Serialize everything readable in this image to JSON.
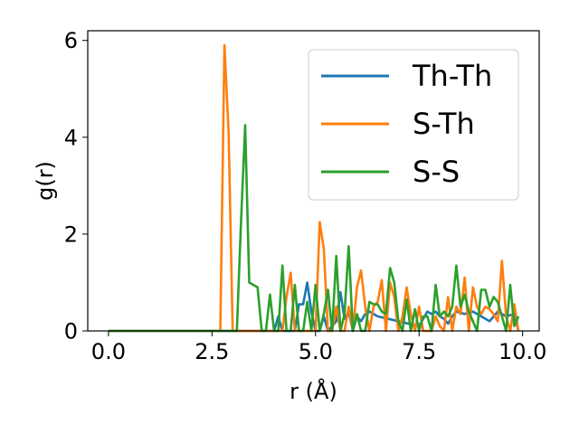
{
  "chart_data": {
    "type": "line",
    "xlabel": "r (Å)",
    "ylabel": "g(r)",
    "xlim": [
      -0.5,
      10.4
    ],
    "ylim": [
      0,
      6.2
    ],
    "xticks": [
      0.0,
      2.5,
      5.0,
      7.5,
      10.0
    ],
    "xtick_labels": [
      "0.0",
      "2.5",
      "5.0",
      "7.5",
      "10.0"
    ],
    "yticks": [
      0,
      2,
      4,
      6
    ],
    "ytick_labels": [
      "0",
      "2",
      "4",
      "6"
    ],
    "grid": false,
    "legend_position": "top-right",
    "series": [
      {
        "name": "Th-Th",
        "color": "#1f77b4",
        "x": [
          0.0,
          2.5,
          4.0,
          4.1,
          4.2,
          4.3,
          4.4,
          4.5,
          4.6,
          4.7,
          4.8,
          4.9,
          5.0,
          5.1,
          5.2,
          5.3,
          5.5,
          5.6,
          5.7,
          5.8,
          5.9,
          6.0,
          6.1,
          6.2,
          6.3,
          6.5,
          7.0,
          7.5,
          7.7,
          7.8,
          7.9,
          8.0,
          8.1,
          8.2,
          8.3,
          8.4,
          8.6,
          8.8,
          9.0,
          9.2,
          9.4,
          9.6,
          9.8,
          9.9
        ],
        "values": [
          0,
          0,
          0,
          0.3,
          0,
          0,
          0,
          0,
          0.55,
          0.55,
          1.0,
          0.4,
          0,
          0,
          0.3,
          0,
          0.2,
          0.8,
          0.25,
          0.4,
          0,
          0.3,
          0.2,
          0.35,
          0.4,
          0.3,
          0.2,
          0.1,
          0.4,
          0.35,
          0.4,
          0.3,
          0.25,
          0.15,
          0.3,
          0.4,
          0.35,
          0.4,
          0.3,
          0.2,
          0.4,
          0.3,
          0.35,
          0
        ]
      },
      {
        "name": "S-Th",
        "color": "#ff7f0e",
        "x": [
          0.0,
          2.7,
          2.8,
          2.9,
          3.0,
          3.1,
          3.2,
          3.3,
          3.4,
          3.5,
          3.6,
          3.7,
          3.8,
          3.9,
          4.0,
          4.1,
          4.2,
          4.3,
          4.4,
          4.5,
          4.6,
          4.7,
          4.8,
          4.9,
          5.0,
          5.1,
          5.2,
          5.3,
          5.4,
          5.5,
          5.6,
          5.7,
          5.8,
          5.9,
          6.0,
          6.1,
          6.2,
          6.3,
          6.4,
          6.5,
          6.6,
          6.7,
          6.8,
          6.9,
          7.0,
          7.1,
          7.2,
          7.3,
          7.4,
          7.5,
          7.6,
          7.7,
          7.8,
          7.9,
          8.0,
          8.1,
          8.2,
          8.3,
          8.4,
          8.5,
          8.6,
          8.7,
          8.8,
          8.9,
          9.0,
          9.1,
          9.2,
          9.3,
          9.4,
          9.5,
          9.6,
          9.7,
          9.8,
          9.9
        ],
        "values": [
          0,
          0,
          5.9,
          4.1,
          0,
          0,
          0,
          0,
          0,
          0,
          0,
          0,
          0,
          0,
          0,
          0,
          0,
          0.7,
          1.2,
          0,
          0,
          0,
          0,
          0,
          0,
          2.25,
          1.7,
          0,
          0,
          0.5,
          0,
          0,
          0.5,
          0,
          0.9,
          1.25,
          0.5,
          0,
          0.5,
          0.6,
          1.05,
          0,
          1.0,
          0.7,
          0,
          0.3,
          0.9,
          0.35,
          0,
          0.5,
          0,
          0,
          0,
          0.3,
          0.1,
          0,
          0.7,
          0,
          0.5,
          0.35,
          1.1,
          0,
          0.9,
          0.5,
          0.35,
          0.5,
          0.45,
          0.35,
          0.2,
          1.45,
          0.3,
          0,
          0.55,
          0
        ]
      },
      {
        "name": "S-S",
        "color": "#2ca02c",
        "x": [
          0.0,
          3.0,
          3.1,
          3.2,
          3.3,
          3.4,
          3.5,
          3.6,
          3.7,
          3.8,
          3.9,
          4.0,
          4.1,
          4.2,
          4.3,
          4.4,
          4.5,
          4.6,
          4.7,
          4.8,
          4.9,
          5.0,
          5.1,
          5.2,
          5.3,
          5.4,
          5.5,
          5.6,
          5.7,
          5.8,
          5.9,
          6.0,
          6.1,
          6.2,
          6.3,
          6.4,
          6.5,
          6.6,
          6.7,
          6.8,
          6.9,
          7.0,
          7.1,
          7.2,
          7.3,
          7.4,
          7.5,
          7.6,
          7.7,
          7.8,
          7.9,
          8.0,
          8.1,
          8.2,
          8.3,
          8.4,
          8.5,
          8.6,
          8.7,
          8.8,
          8.9,
          9.0,
          9.1,
          9.2,
          9.3,
          9.4,
          9.5,
          9.6,
          9.7,
          9.8,
          9.9
        ],
        "values": [
          0,
          0,
          0,
          2.25,
          4.25,
          1.0,
          0.95,
          0.9,
          0,
          0,
          0.75,
          0,
          0,
          1.35,
          0,
          0,
          0.95,
          0,
          0,
          0.6,
          0,
          0.95,
          0,
          0.35,
          0.85,
          0,
          1.55,
          0,
          0.35,
          1.75,
          0,
          0.35,
          0,
          0,
          0.6,
          0.55,
          0.55,
          0.4,
          0.35,
          1.3,
          1.0,
          0.2,
          0,
          0.65,
          0,
          0.45,
          0,
          0.3,
          0.3,
          0,
          0.95,
          0.3,
          0.4,
          0.3,
          0.5,
          1.35,
          0.5,
          0.75,
          0.4,
          0.2,
          0,
          0.85,
          0.85,
          0.5,
          0.7,
          0.6,
          0.3,
          0,
          0.95,
          0.1,
          0.3
        ]
      }
    ]
  }
}
